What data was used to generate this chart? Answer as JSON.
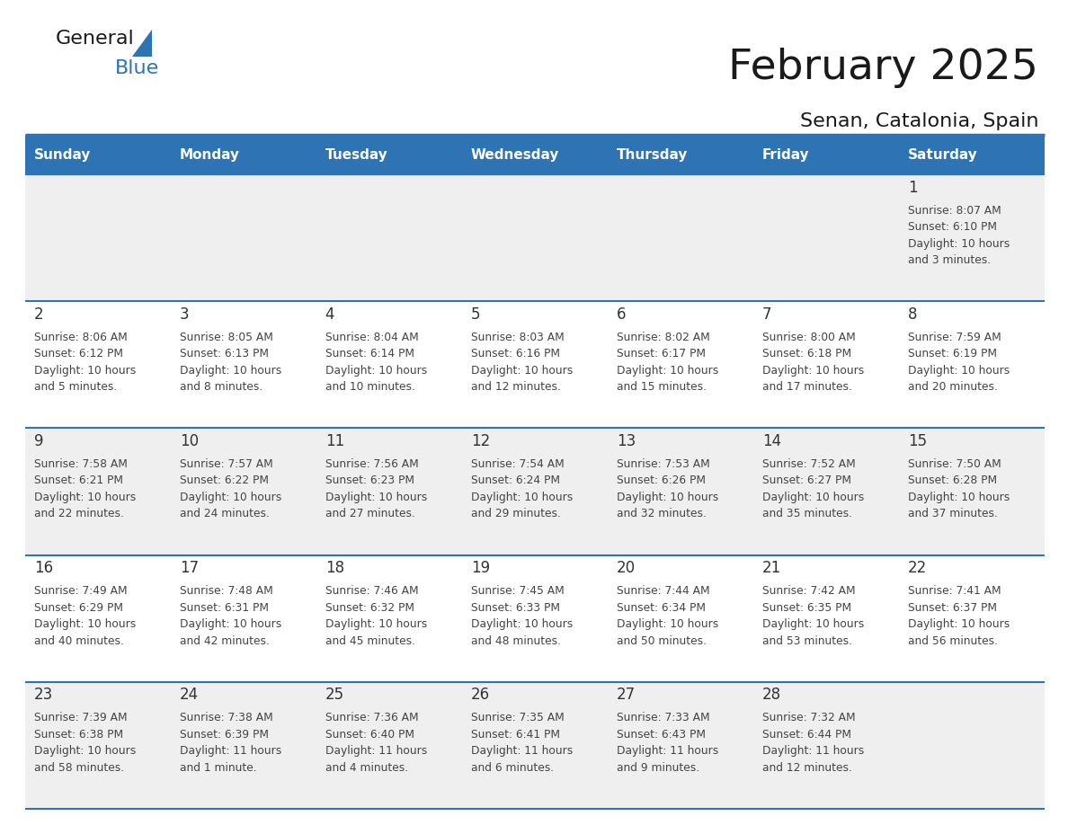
{
  "title": "February 2025",
  "subtitle": "Senan, Catalonia, Spain",
  "header_bg": "#2E74B5",
  "header_text_color": "#FFFFFF",
  "cell_bg_odd": "#EFEFEF",
  "cell_bg_even": "#FFFFFF",
  "day_number_color": "#333333",
  "text_color": "#444444",
  "line_color": "#2E74B5",
  "days_of_week": [
    "Sunday",
    "Monday",
    "Tuesday",
    "Wednesday",
    "Thursday",
    "Friday",
    "Saturday"
  ],
  "calendar_data": [
    [
      {
        "day": null,
        "sunrise": null,
        "sunset": null,
        "daylight": null
      },
      {
        "day": null,
        "sunrise": null,
        "sunset": null,
        "daylight": null
      },
      {
        "day": null,
        "sunrise": null,
        "sunset": null,
        "daylight": null
      },
      {
        "day": null,
        "sunrise": null,
        "sunset": null,
        "daylight": null
      },
      {
        "day": null,
        "sunrise": null,
        "sunset": null,
        "daylight": null
      },
      {
        "day": null,
        "sunrise": null,
        "sunset": null,
        "daylight": null
      },
      {
        "day": 1,
        "sunrise": "8:07 AM",
        "sunset": "6:10 PM",
        "daylight": "10 hours and 3 minutes."
      }
    ],
    [
      {
        "day": 2,
        "sunrise": "8:06 AM",
        "sunset": "6:12 PM",
        "daylight": "10 hours and 5 minutes."
      },
      {
        "day": 3,
        "sunrise": "8:05 AM",
        "sunset": "6:13 PM",
        "daylight": "10 hours and 8 minutes."
      },
      {
        "day": 4,
        "sunrise": "8:04 AM",
        "sunset": "6:14 PM",
        "daylight": "10 hours and 10 minutes."
      },
      {
        "day": 5,
        "sunrise": "8:03 AM",
        "sunset": "6:16 PM",
        "daylight": "10 hours and 12 minutes."
      },
      {
        "day": 6,
        "sunrise": "8:02 AM",
        "sunset": "6:17 PM",
        "daylight": "10 hours and 15 minutes."
      },
      {
        "day": 7,
        "sunrise": "8:00 AM",
        "sunset": "6:18 PM",
        "daylight": "10 hours and 17 minutes."
      },
      {
        "day": 8,
        "sunrise": "7:59 AM",
        "sunset": "6:19 PM",
        "daylight": "10 hours and 20 minutes."
      }
    ],
    [
      {
        "day": 9,
        "sunrise": "7:58 AM",
        "sunset": "6:21 PM",
        "daylight": "10 hours and 22 minutes."
      },
      {
        "day": 10,
        "sunrise": "7:57 AM",
        "sunset": "6:22 PM",
        "daylight": "10 hours and 24 minutes."
      },
      {
        "day": 11,
        "sunrise": "7:56 AM",
        "sunset": "6:23 PM",
        "daylight": "10 hours and 27 minutes."
      },
      {
        "day": 12,
        "sunrise": "7:54 AM",
        "sunset": "6:24 PM",
        "daylight": "10 hours and 29 minutes."
      },
      {
        "day": 13,
        "sunrise": "7:53 AM",
        "sunset": "6:26 PM",
        "daylight": "10 hours and 32 minutes."
      },
      {
        "day": 14,
        "sunrise": "7:52 AM",
        "sunset": "6:27 PM",
        "daylight": "10 hours and 35 minutes."
      },
      {
        "day": 15,
        "sunrise": "7:50 AM",
        "sunset": "6:28 PM",
        "daylight": "10 hours and 37 minutes."
      }
    ],
    [
      {
        "day": 16,
        "sunrise": "7:49 AM",
        "sunset": "6:29 PM",
        "daylight": "10 hours and 40 minutes."
      },
      {
        "day": 17,
        "sunrise": "7:48 AM",
        "sunset": "6:31 PM",
        "daylight": "10 hours and 42 minutes."
      },
      {
        "day": 18,
        "sunrise": "7:46 AM",
        "sunset": "6:32 PM",
        "daylight": "10 hours and 45 minutes."
      },
      {
        "day": 19,
        "sunrise": "7:45 AM",
        "sunset": "6:33 PM",
        "daylight": "10 hours and 48 minutes."
      },
      {
        "day": 20,
        "sunrise": "7:44 AM",
        "sunset": "6:34 PM",
        "daylight": "10 hours and 50 minutes."
      },
      {
        "day": 21,
        "sunrise": "7:42 AM",
        "sunset": "6:35 PM",
        "daylight": "10 hours and 53 minutes."
      },
      {
        "day": 22,
        "sunrise": "7:41 AM",
        "sunset": "6:37 PM",
        "daylight": "10 hours and 56 minutes."
      }
    ],
    [
      {
        "day": 23,
        "sunrise": "7:39 AM",
        "sunset": "6:38 PM",
        "daylight": "10 hours and 58 minutes."
      },
      {
        "day": 24,
        "sunrise": "7:38 AM",
        "sunset": "6:39 PM",
        "daylight": "11 hours and 1 minute."
      },
      {
        "day": 25,
        "sunrise": "7:36 AM",
        "sunset": "6:40 PM",
        "daylight": "11 hours and 4 minutes."
      },
      {
        "day": 26,
        "sunrise": "7:35 AM",
        "sunset": "6:41 PM",
        "daylight": "11 hours and 6 minutes."
      },
      {
        "day": 27,
        "sunrise": "7:33 AM",
        "sunset": "6:43 PM",
        "daylight": "11 hours and 9 minutes."
      },
      {
        "day": 28,
        "sunrise": "7:32 AM",
        "sunset": "6:44 PM",
        "daylight": "11 hours and 12 minutes."
      },
      {
        "day": null,
        "sunrise": null,
        "sunset": null,
        "daylight": null
      }
    ]
  ]
}
